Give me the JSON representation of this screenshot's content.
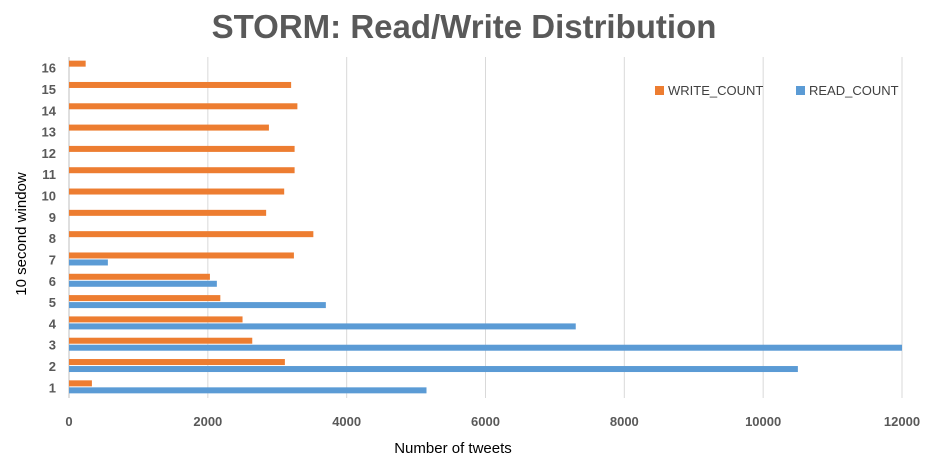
{
  "chart_data": {
    "type": "bar",
    "orientation": "horizontal",
    "title": "STORM: Read/Write Distribution",
    "xlabel": "Number of  tweets",
    "ylabel": "10 second window",
    "categories": [
      "1",
      "2",
      "3",
      "4",
      "5",
      "6",
      "7",
      "8",
      "9",
      "10",
      "11",
      "12",
      "13",
      "14",
      "15",
      "16"
    ],
    "xlim": [
      0,
      12000
    ],
    "xticks": [
      0,
      2000,
      4000,
      6000,
      8000,
      10000,
      12000
    ],
    "grid": true,
    "legend_position": "top-right",
    "series": [
      {
        "name": "READ_COUNT",
        "color": "#5b9bd5",
        "values": [
          5150,
          10500,
          12000,
          7300,
          3700,
          2130,
          560,
          0,
          0,
          0,
          0,
          0,
          0,
          0,
          0,
          0
        ]
      },
      {
        "name": "WRITE_COUNT",
        "color": "#ed7d31",
        "values": [
          330,
          3110,
          2640,
          2500,
          2180,
          2030,
          3240,
          3520,
          2840,
          3100,
          3250,
          3250,
          2880,
          3290,
          3200,
          240
        ]
      }
    ],
    "legend_order": [
      "WRITE_COUNT",
      "READ_COUNT"
    ]
  }
}
